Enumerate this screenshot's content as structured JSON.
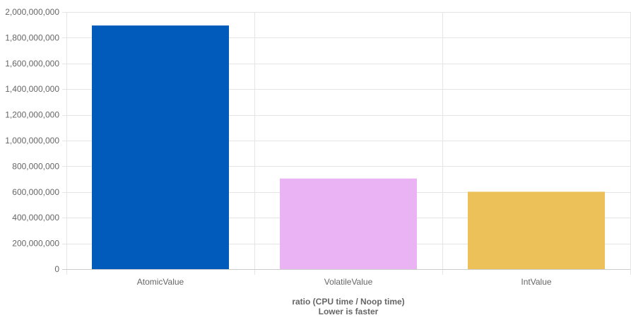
{
  "chart_data": {
    "type": "bar",
    "categories": [
      "AtomicValue",
      "VolatileValue",
      "IntValue"
    ],
    "values": [
      1895000000,
      705000000,
      602000000
    ],
    "colors": [
      "#005bbb",
      "#eab4f4",
      "#edc15a"
    ],
    "title": "",
    "xlabel": "ratio (CPU time / Noop time)",
    "xlabel_sub": "Lower is faster",
    "ylabel": "",
    "ylim": [
      0,
      2000000000
    ],
    "yticks": [
      0,
      200000000,
      400000000,
      600000000,
      800000000,
      1000000000,
      1200000000,
      1400000000,
      1600000000,
      1800000000,
      2000000000
    ],
    "ytick_labels": [
      "0",
      "200,000,000",
      "400,000,000",
      "600,000,000",
      "800,000,000",
      "1,000,000,000",
      "1,200,000,000",
      "1,400,000,000",
      "1,600,000,000",
      "1,800,000,000",
      "2,000,000,000"
    ],
    "grid": true,
    "legend": "none"
  }
}
